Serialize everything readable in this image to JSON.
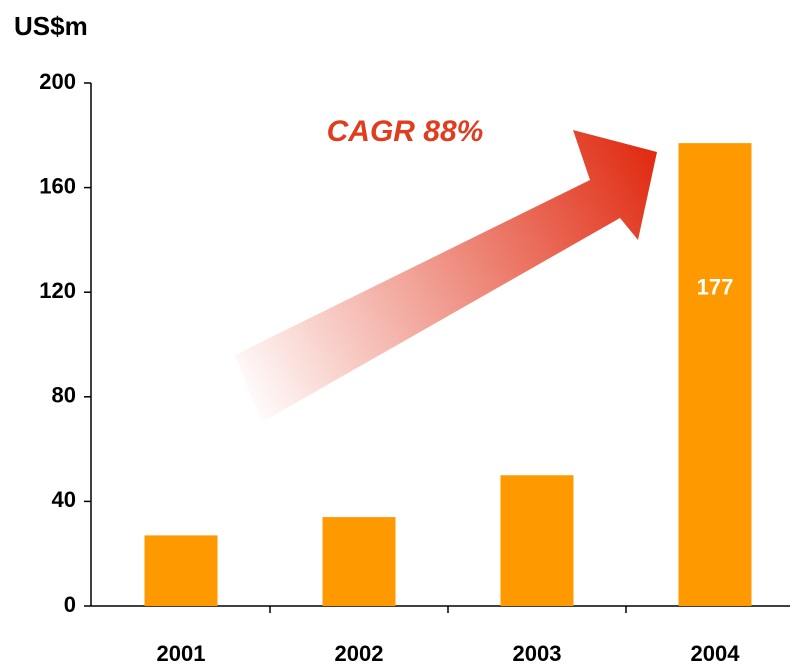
{
  "chart_data": {
    "type": "bar",
    "title": "US$m",
    "annotation": "CAGR 88%",
    "categories": [
      "2001",
      "2002",
      "2003",
      "2004"
    ],
    "values": [
      27,
      34,
      50,
      177
    ],
    "value_labels": [
      null,
      null,
      null,
      "177"
    ],
    "color": "#ff9900",
    "ylim": [
      0,
      200
    ],
    "yticks": [
      0,
      40,
      80,
      120,
      160,
      200
    ],
    "grid": false
  }
}
